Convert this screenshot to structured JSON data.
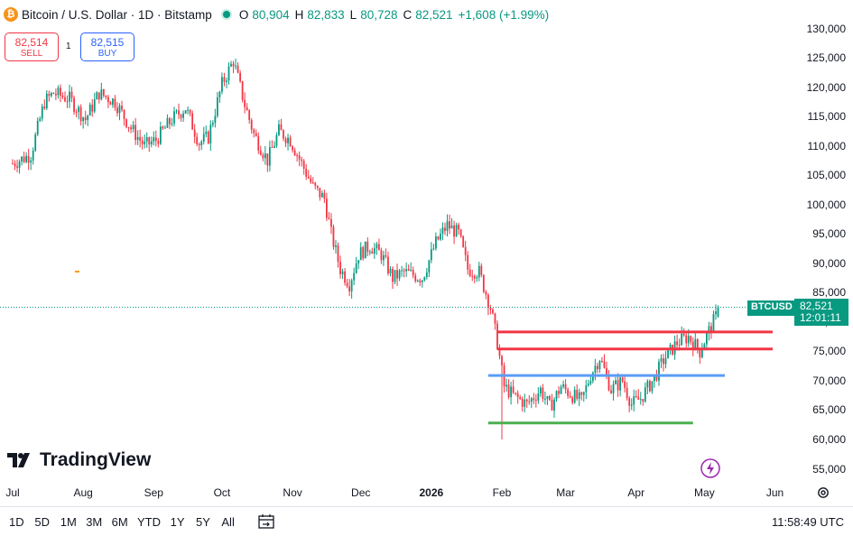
{
  "header": {
    "symbol_icon": "bitcoin-icon",
    "title": "Bitcoin / U.S. Dollar · 1D · Bitstamp",
    "o_label": "O",
    "o_val": "80,904",
    "h_label": "H",
    "h_val": "82,833",
    "l_label": "L",
    "l_val": "80,728",
    "c_label": "C",
    "c_val": "82,521",
    "change": "+1,608 (+1.99%)"
  },
  "trade": {
    "sell_price": "82,514",
    "sell_label": "SELL",
    "spread": "1",
    "buy_price": "82,515",
    "buy_label": "BUY"
  },
  "price_tag": {
    "symbol": "BTCUSD",
    "price": "82,521",
    "countdown": "12:01:11"
  },
  "logo": {
    "text": "TradingView"
  },
  "timeframes": [
    "1D",
    "5D",
    "1M",
    "3M",
    "6M",
    "YTD",
    "1Y",
    "5Y",
    "All"
  ],
  "clock": "11:58:49 UTC",
  "colors": {
    "up": "#089981",
    "down": "#f23645",
    "support_green": "#4caf50",
    "blue_line": "#5b9cf6",
    "red_line": "#f23645"
  },
  "chart_data": {
    "type": "candlestick",
    "y_ticks": [
      "130,000",
      "125,000",
      "120,000",
      "115,000",
      "110,000",
      "105,000",
      "100,000",
      "95,000",
      "90,000",
      "85,000",
      "80,000",
      "75,000",
      "70,000",
      "65,000",
      "60,000",
      "55,000"
    ],
    "ylim": [
      52000,
      134000
    ],
    "x_ticks": [
      {
        "label": "Jul",
        "day": 0
      },
      {
        "label": "Aug",
        "day": 31
      },
      {
        "label": "Sep",
        "day": 62
      },
      {
        "label": "Oct",
        "day": 92
      },
      {
        "label": "Nov",
        "day": 123
      },
      {
        "label": "Dec",
        "day": 153
      },
      {
        "label": "2026",
        "day": 184,
        "bold": true
      },
      {
        "label": "Feb",
        "day": 215
      },
      {
        "label": "Mar",
        "day": 243
      },
      {
        "label": "Apr",
        "day": 274
      },
      {
        "label": "May",
        "day": 304
      },
      {
        "label": "Jun",
        "day": 335
      }
    ],
    "anchors": [
      [
        0,
        107000
      ],
      [
        8,
        108500
      ],
      [
        14,
        117500
      ],
      [
        18,
        119000
      ],
      [
        25,
        118000
      ],
      [
        32,
        114500
      ],
      [
        38,
        119000
      ],
      [
        45,
        117500
      ],
      [
        52,
        113000
      ],
      [
        58,
        110000
      ],
      [
        63,
        111000
      ],
      [
        70,
        114500
      ],
      [
        76,
        116500
      ],
      [
        82,
        110500
      ],
      [
        86,
        111500
      ],
      [
        92,
        120500
      ],
      [
        97,
        124500
      ],
      [
        102,
        117000
      ],
      [
        106,
        112000
      ],
      [
        112,
        107500
      ],
      [
        117,
        112500
      ],
      [
        122,
        111000
      ],
      [
        127,
        107000
      ],
      [
        132,
        103000
      ],
      [
        137,
        101000
      ],
      [
        140,
        95000
      ],
      [
        144,
        89000
      ],
      [
        148,
        86500
      ],
      [
        152,
        91500
      ],
      [
        157,
        93000
      ],
      [
        162,
        91500
      ],
      [
        167,
        87500
      ],
      [
        172,
        88500
      ],
      [
        176,
        88000
      ],
      [
        180,
        87500
      ],
      [
        186,
        93500
      ],
      [
        191,
        96500
      ],
      [
        196,
        95000
      ],
      [
        200,
        89000
      ],
      [
        205,
        88500
      ],
      [
        210,
        82500
      ],
      [
        213,
        76500
      ],
      [
        216,
        69000
      ],
      [
        220,
        67500
      ],
      [
        226,
        66000
      ],
      [
        232,
        68500
      ],
      [
        236,
        65500
      ],
      [
        241,
        69000
      ],
      [
        246,
        67500
      ],
      [
        250,
        66500
      ],
      [
        254,
        71000
      ],
      [
        258,
        74000
      ],
      [
        263,
        68500
      ],
      [
        268,
        70000
      ],
      [
        272,
        66000
      ],
      [
        276,
        67000
      ],
      [
        282,
        70500
      ],
      [
        286,
        73500
      ],
      [
        292,
        76500
      ],
      [
        297,
        77500
      ],
      [
        302,
        75000
      ],
      [
        306,
        78500
      ],
      [
        309,
        80900
      ],
      [
        310,
        82521
      ]
    ],
    "last": {
      "o": 80904,
      "h": 82833,
      "l": 80728,
      "c": 82521
    },
    "hlines": [
      {
        "color": "red",
        "y": 78300,
        "x0": 213,
        "x1": 334
      },
      {
        "color": "red",
        "y": 75400,
        "x0": 213,
        "x1": 334
      },
      {
        "color": "blue",
        "y": 70900,
        "x0": 209,
        "x1": 313
      },
      {
        "color": "green",
        "y": 62800,
        "x0": 209,
        "x1": 299
      }
    ],
    "current_price": 82521
  }
}
